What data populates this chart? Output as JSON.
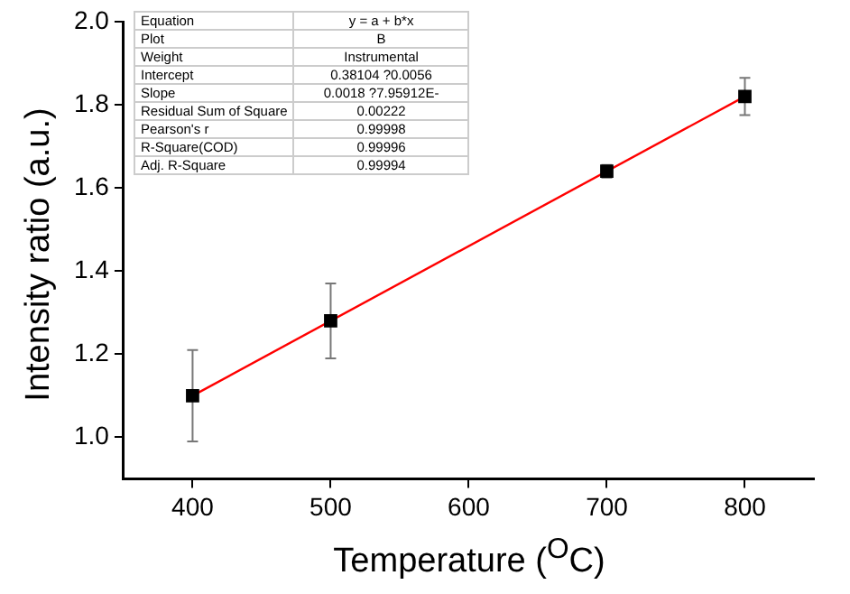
{
  "chart_data": {
    "type": "scatter",
    "xlabel": "Temperature ($^{O}$C)",
    "ylabel": "Intensity ratio (a.u.)",
    "x": [
      400,
      500,
      700,
      800
    ],
    "series": [
      {
        "type": "scatter",
        "color": "#000000",
        "values": [
          1.1,
          1.28,
          1.64,
          1.82
        ],
        "errors": [
          0.11,
          0.09,
          0.015,
          0.045
        ],
        "marker": "square"
      },
      {
        "type": "line",
        "color": "#ff0000",
        "x": [
          400,
          800
        ],
        "values": [
          1.1,
          1.82
        ],
        "marker": "none"
      }
    ],
    "xlim": [
      350,
      850
    ],
    "xticks": [
      400,
      500,
      600,
      700,
      800
    ],
    "ylim": [
      0.9,
      2.0
    ],
    "yticks": [
      {
        "value": 1,
        "label": "1.0"
      },
      {
        "value": 1.2,
        "label": "1.2"
      },
      {
        "value": 1.4,
        "label": "1.4"
      },
      {
        "value": 1.6,
        "label": "1.6"
      },
      {
        "value": 1.8,
        "label": "1.8"
      },
      {
        "value": 2,
        "label": "2.0"
      }
    ],
    "grid": false,
    "legend": false,
    "annotations": [
      "Equation",
      "y = a + b*x",
      "Plot",
      "B",
      "Weight",
      "Instrumental",
      "Intercept",
      "0.38104 ?0.0056",
      "Slope",
      "0.0018 ?7.95912E-",
      "Residual Sum of Square",
      "0.00222",
      "Pearson's r",
      "0.99998",
      "R-Square(COD)",
      "0.99996",
      "Adj. R-Square",
      "0.99994"
    ]
  }
}
